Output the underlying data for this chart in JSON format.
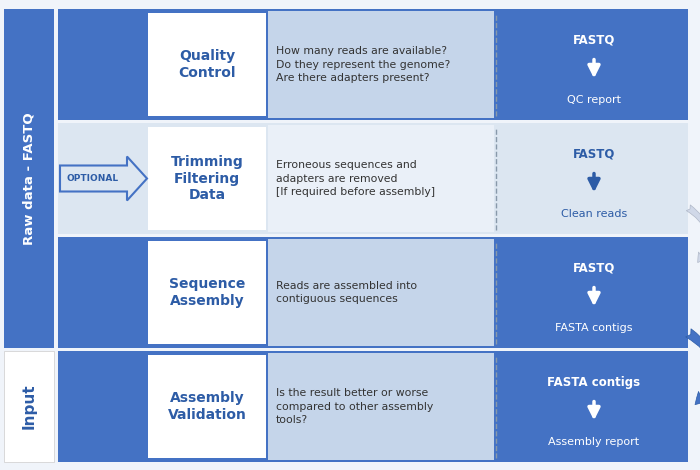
{
  "bg_color": "#f0f4fa",
  "dark_blue": "#2d5ca6",
  "medium_blue": "#4472c4",
  "light_blue": "#b8cce4",
  "lighter_blue": "#dce6f1",
  "very_light_blue": "#eaf0f8",
  "white": "#ffffff",
  "rows": [
    {
      "id": "qc",
      "title": "Quality\nControl",
      "description": "How many reads are available?\nDo they represent the genome?\nAre there adapters present?",
      "input_top": "FASTQ",
      "input_bottom": "QC report",
      "is_optional": false,
      "row_bg": "#4472c4",
      "desc_bg": "#c5d5ea",
      "right_bg": "#4472c4",
      "text_color": "#ffffff",
      "right_text_color": "#ffffff"
    },
    {
      "id": "trim",
      "title": "Trimming\nFiltering\nData",
      "description": "Erroneous sequences and\nadapters are removed\n[If required before assembly]",
      "input_top": "FASTQ",
      "input_bottom": "Clean reads",
      "is_optional": true,
      "row_bg": "#dce6f1",
      "desc_bg": "#eaf0f8",
      "right_bg": "#dce6f1",
      "text_color": "#2d5ca6",
      "right_text_color": "#2d5ca6"
    },
    {
      "id": "assembly",
      "title": "Sequence\nAssembly",
      "description": "Reads are assembled into\ncontiguous sequences",
      "input_top": "FASTQ",
      "input_bottom": "FASTA contigs",
      "is_optional": false,
      "row_bg": "#4472c4",
      "desc_bg": "#c5d5ea",
      "right_bg": "#4472c4",
      "text_color": "#ffffff",
      "right_text_color": "#ffffff"
    },
    {
      "id": "validation",
      "title": "Assembly\nValidation",
      "description": "Is the result better or worse\ncompared to other assembly\ntools?",
      "input_top": "FASTA contigs",
      "input_bottom": "Assembly report",
      "is_optional": false,
      "row_bg": "#4472c4",
      "desc_bg": "#c5d5ea",
      "right_bg": "#4472c4",
      "text_color": "#ffffff",
      "right_text_color": "#ffffff"
    }
  ],
  "left_bar_top_text": "Raw data - FASTQ",
  "left_bar_bottom_text": "Input",
  "left_bar_color": "#4472c4",
  "dashed_line_color": "#8899aa"
}
